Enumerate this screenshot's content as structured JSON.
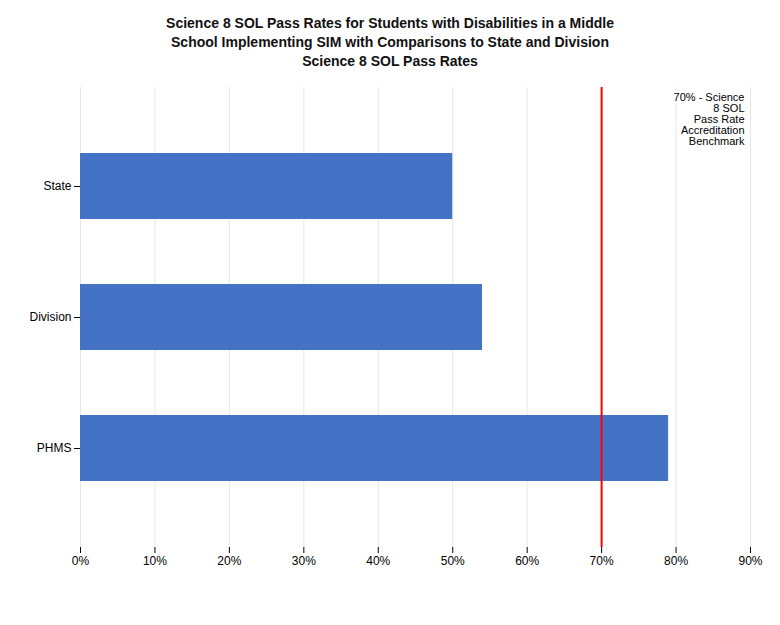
{
  "chart_data": {
    "type": "bar",
    "orientation": "horizontal",
    "title": "Science 8 SOL Pass Rates for Students with Disabilities in a Middle\nSchool Implementing SIM with Comparisons to State and Division\nScience 8 SOL Pass Rates",
    "categories": [
      "PHMS",
      "Division",
      "State"
    ],
    "values": [
      79,
      54,
      50
    ],
    "color": "#4472C4",
    "xlim": [
      0,
      90
    ],
    "xticks": [
      {
        "value": 0,
        "label": "0%"
      },
      {
        "value": 10,
        "label": "10%"
      },
      {
        "value": 20,
        "label": "20%"
      },
      {
        "value": 30,
        "label": "30%"
      },
      {
        "value": 40,
        "label": "40%"
      },
      {
        "value": 50,
        "label": "50%"
      },
      {
        "value": 60,
        "label": "60%"
      },
      {
        "value": 70,
        "label": "70%"
      },
      {
        "value": 80,
        "label": "80%"
      },
      {
        "value": 90,
        "label": "90%"
      }
    ],
    "grid": true,
    "annotations": [
      {
        "text": "70% - Science\n8 SOL\nPass Rate\nAccreditation\nBenchmark",
        "x": 70,
        "color": "#FF0000"
      }
    ]
  }
}
